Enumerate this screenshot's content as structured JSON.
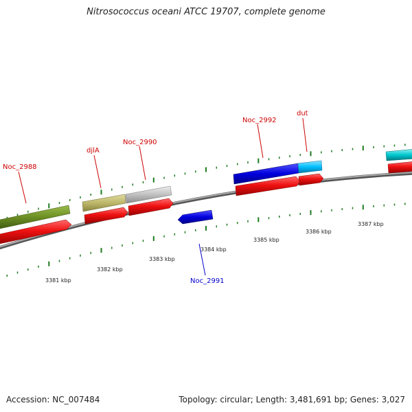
{
  "title": "Nitrosococcus oceani ATCC 19707, complete genome",
  "footer": {
    "accession": "Accession: NC_007484",
    "topology": "Topology: circular; Length: 3,481,691 bp; Genes: 3,027"
  },
  "colors": {
    "backbone": "#8a8a8a",
    "tick": "#1f7a1f",
    "cds": "#ee1111",
    "label_plus": "#cc0000",
    "label_minus": "#0000cc"
  },
  "scale_labels": [
    "3381 kbp",
    "3382 kbp",
    "3383 kbp",
    "3384 kbp",
    "3385 kbp",
    "3386 kbp",
    "3387 kbp"
  ],
  "genes": [
    {
      "name": "Noc_2988",
      "color": "#6b8e23",
      "strand": "+"
    },
    {
      "name": "djlA",
      "color": "#bdb76b",
      "strand": "+"
    },
    {
      "name": "Noc_2990",
      "color": "#c0c0c0",
      "strand": "+"
    },
    {
      "name": "Noc_2991",
      "color": "#0000dd",
      "strand": "-"
    },
    {
      "name": "Noc_2992",
      "color": "#0000dd",
      "strand": "+"
    },
    {
      "name": "dut",
      "color": "#00bfff",
      "strand": "+"
    },
    {
      "name": "",
      "color": "#00c8d0",
      "strand": "+"
    }
  ]
}
